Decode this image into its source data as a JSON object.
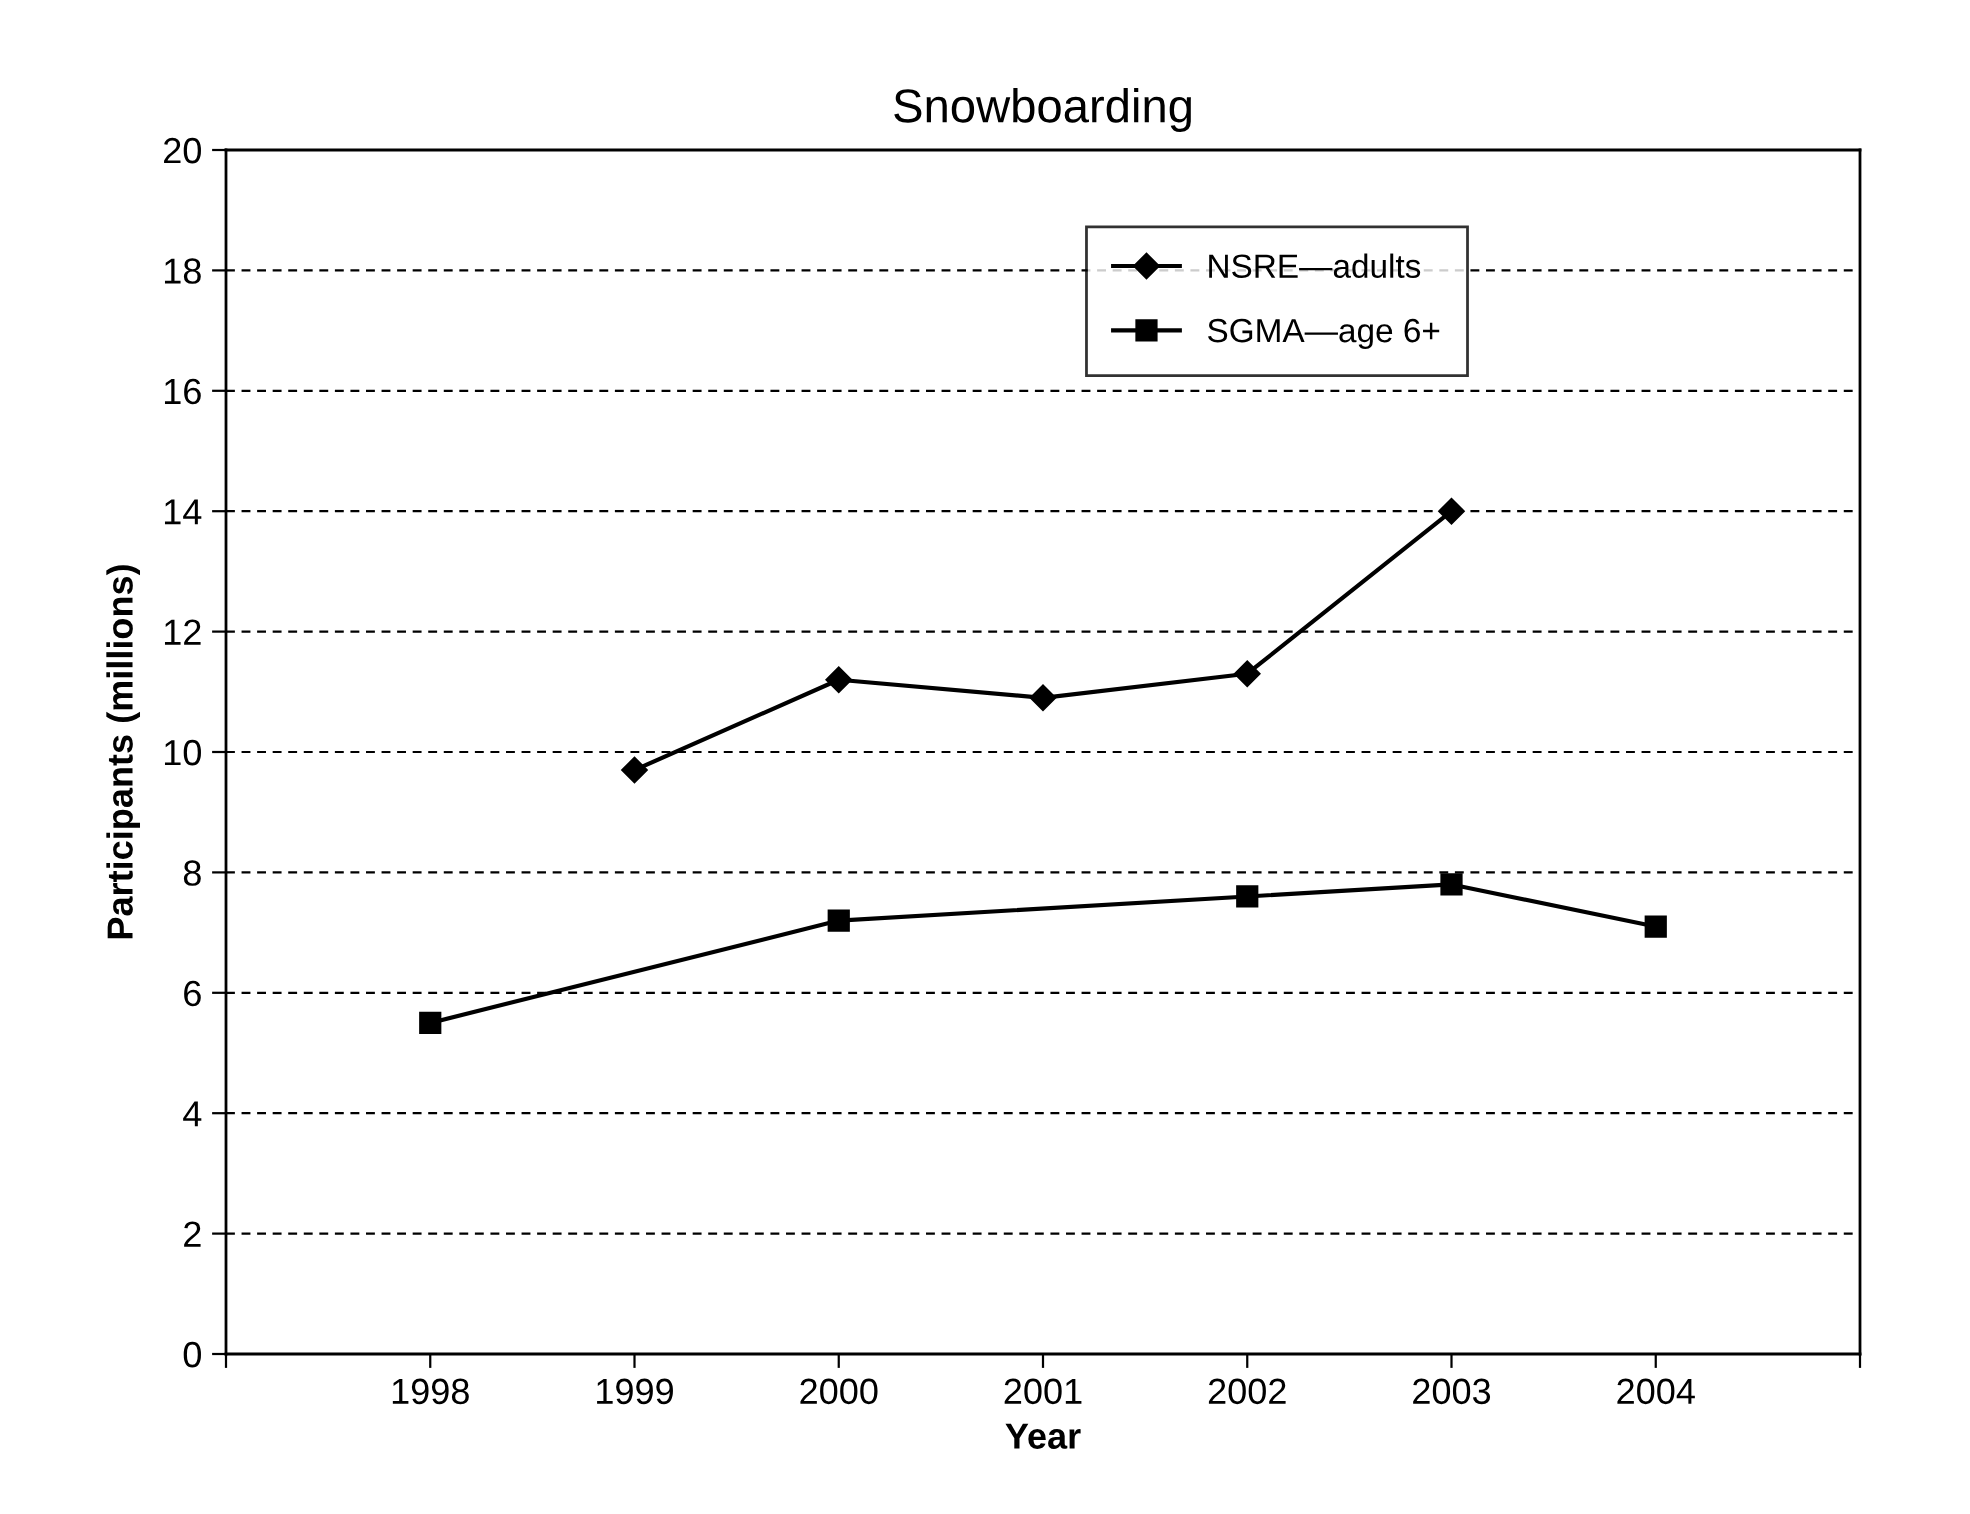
{
  "chart_data": {
    "type": "line",
    "title": "Snowboarding",
    "xlabel": "Year",
    "ylabel": "Participants (millions)",
    "series": [
      {
        "name": "NSRE—adults",
        "color": "#000000",
        "marker": "diamond",
        "x": [
          1999,
          2000,
          2001,
          2002,
          2003
        ],
        "values": [
          9.7,
          11.2,
          10.9,
          11.3,
          14.0
        ]
      },
      {
        "name": "SGMA—age 6+",
        "color": "#000000",
        "marker": "square",
        "x": [
          1998,
          2000,
          2002,
          2003,
          2004
        ],
        "values": [
          5.5,
          7.2,
          7.6,
          7.8,
          7.1
        ]
      }
    ],
    "xlim": [
      1997,
      2005
    ],
    "xticks": [
      {
        "value": 1997,
        "label": null
      },
      1998,
      1999,
      2000,
      2001,
      2002,
      2003,
      2004,
      {
        "value": 2005,
        "label": null
      }
    ],
    "ylim": [
      0,
      20
    ],
    "yticks": [
      0,
      2,
      4,
      6,
      8,
      10,
      12,
      14,
      16,
      18,
      20
    ],
    "grid": "y",
    "legend": "top right",
    "line_style": "solid"
  }
}
